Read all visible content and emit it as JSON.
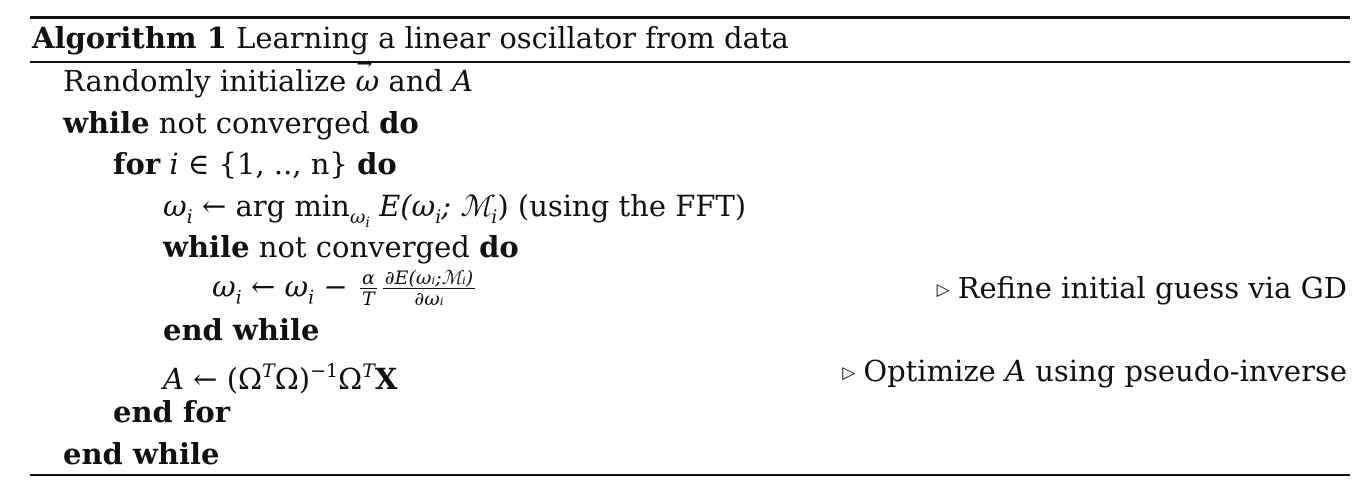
{
  "algorithm": {
    "label": "Algorithm 1",
    "title": "Learning a linear oscillator from data"
  },
  "lines": {
    "init_prefix": "Randomly initialize",
    "init_omega": "ω",
    "init_and": "and",
    "init_A": "A",
    "while_kw": "while",
    "not_converged": "not converged",
    "do_kw": "do",
    "for_kw": "for",
    "for_var": "i",
    "for_in": "∈ {1, .., n}",
    "argmin_lhs": "ω",
    "argmin_lhs_sub": "i",
    "argmin_arrow": "← arg min",
    "argmin_sub": "ω",
    "argmin_sub_sub": "i",
    "argmin_expr": "E(ω",
    "argmin_expr_sub": "i",
    "argmin_expr_tail": "; ℳ",
    "argmin_expr_sub2": "i",
    "argmin_close": ")",
    "argmin_note": "(using the FFT)",
    "inner_while_kw": "while",
    "inner_not_converged": "not converged",
    "inner_do_kw": "do",
    "gd_lhs": "ω",
    "gd_lhs_sub": "i",
    "gd_arrow": "← ω",
    "gd_rhs_sub": "i",
    "gd_minus": "−",
    "gd_frac1_num": "α",
    "gd_frac1_den": "T",
    "gd_frac2_num": "∂E(ωᵢ;ℳᵢ)",
    "gd_frac2_den": "∂ωᵢ",
    "gd_comment": "Refine initial guess via GD",
    "end_inner_while": "end while",
    "pinv_lhs": "A",
    "pinv_arrow": "← (Ω",
    "pinv_T1": "T",
    "pinv_mid": "Ω)",
    "pinv_inv": "−1",
    "pinv_omega": "Ω",
    "pinv_T2": "T",
    "pinv_X": "X",
    "pinv_comment_prefix": "Optimize",
    "pinv_comment_A": "A",
    "pinv_comment_suffix": "using pseudo-inverse",
    "end_for": "end for",
    "end_outer_while": "end while"
  },
  "icons": {
    "comment_marker": "triangle-right-icon"
  }
}
